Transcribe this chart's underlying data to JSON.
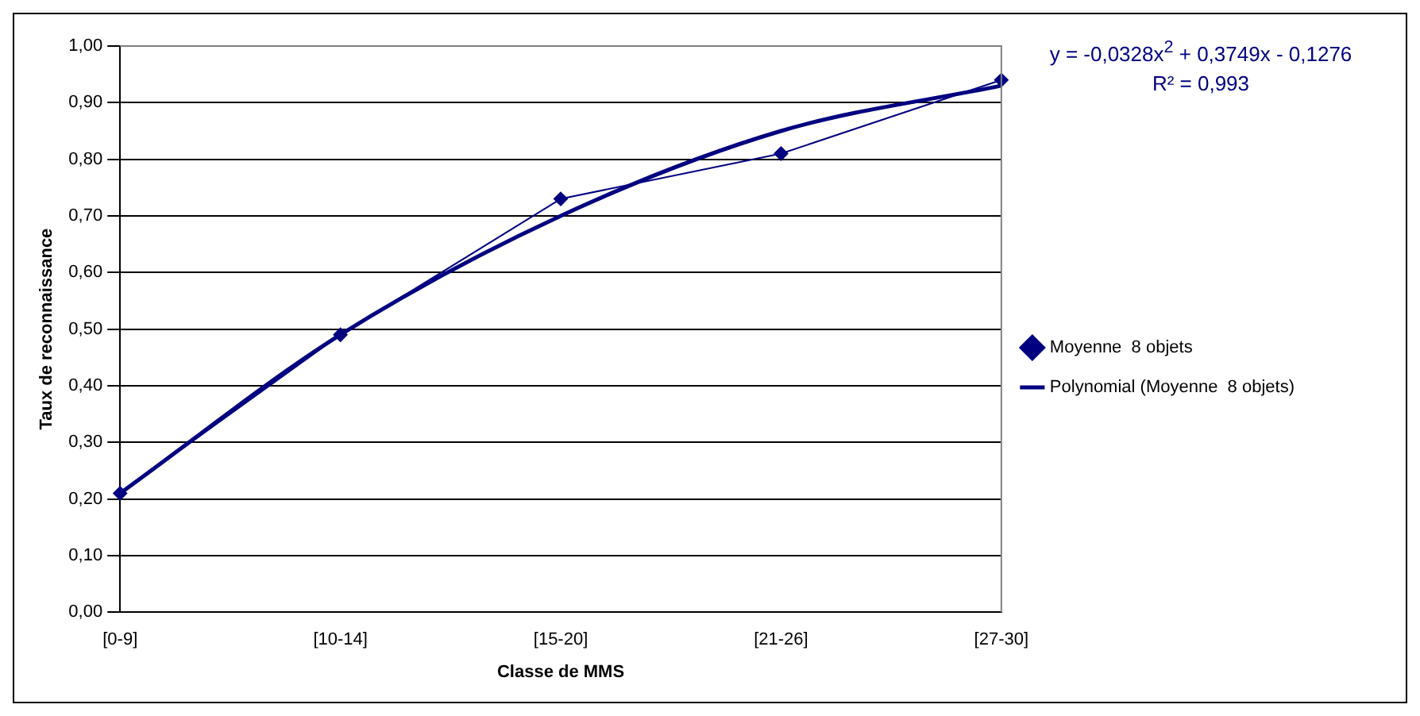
{
  "chart_data": {
    "type": "line",
    "xlabel": "Classe de MMS",
    "ylabel": "Taux de reconnaissance",
    "categories": [
      "[0-9]",
      "[10-14]",
      "[15-20]",
      "[21-26]",
      "[27-30]"
    ],
    "series": [
      {
        "name": "Moyenne  8 objets",
        "color": "#000080",
        "marker": "diamond",
        "values": [
          0.21,
          0.49,
          0.73,
          0.81,
          0.94
        ]
      },
      {
        "name": "Polynomial (Moyenne  8 objets)",
        "type": "line",
        "color": "#000080",
        "marker": "none",
        "values": [
          0.21,
          0.49,
          0.7,
          0.85,
          0.93
        ]
      }
    ],
    "ylim": [
      0,
      1
    ],
    "yticks": [
      {
        "value": 0,
        "label": "0,00"
      },
      {
        "value": 0.1,
        "label": "0,10"
      },
      {
        "value": 0.2,
        "label": "0,20"
      },
      {
        "value": 0.3,
        "label": "0,30"
      },
      {
        "value": 0.4,
        "label": "0,40"
      },
      {
        "value": 0.5,
        "label": "0,50"
      },
      {
        "value": 0.6,
        "label": "0,60"
      },
      {
        "value": 0.7,
        "label": "0,70"
      },
      {
        "value": 0.8,
        "label": "0,80"
      },
      {
        "value": 0.9,
        "label": "0,90"
      },
      {
        "value": 1,
        "label": "1,00"
      }
    ],
    "grid": "y",
    "legend": "right",
    "annotations": [
      "y = -0,0328x$^{2}$ + 0,3749x - 0,1276",
      "R² = 0,993"
    ]
  }
}
